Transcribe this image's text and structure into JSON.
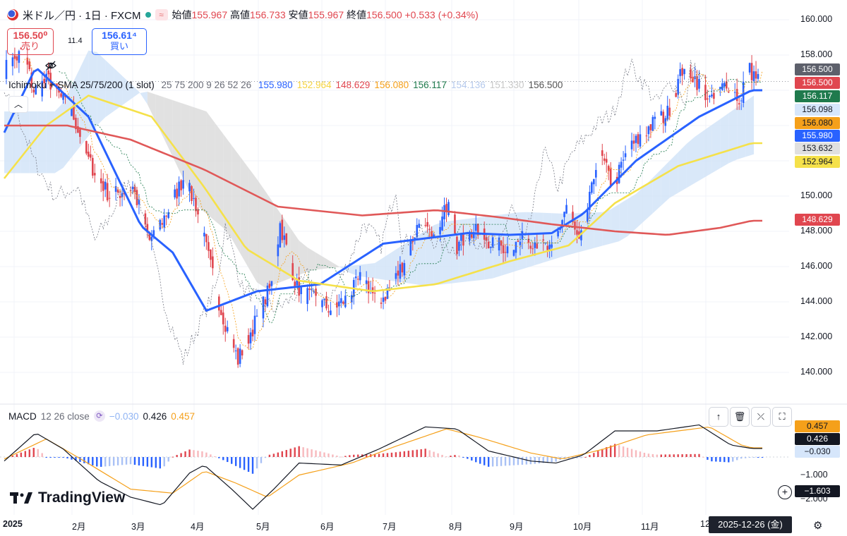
{
  "header": {
    "symbol": "米ドル／円 · 1日 · FXCM",
    "wave_icon": "≈",
    "open_label": "始値",
    "open_value": "155.967",
    "high_label": "高値",
    "high_value": "156.733",
    "low_label": "安値",
    "low_value": "155.967",
    "close_label": "終値",
    "close_value": "156.500",
    "change": "+0.533 (+0.34%)"
  },
  "trade": {
    "sell_price": "156.50⁰",
    "sell_label": "売り",
    "spread": "11.4",
    "buy_price": "156.61⁴",
    "buy_label": "買い"
  },
  "indicator": {
    "name": "Ichimoku + SMA 25/75/200 (1 slot)",
    "params": "25 75 200 9 26 52 26",
    "values": [
      {
        "text": "155.980",
        "color": "#2962ff"
      },
      {
        "text": "152.964",
        "color": "#f5d33f"
      },
      {
        "text": "148.629",
        "color": "#e0464f"
      },
      {
        "text": "156.080",
        "color": "#f5a01a"
      },
      {
        "text": "156.117",
        "color": "#1f7a4d"
      },
      {
        "text": "154.136",
        "color": "#b5c9ec"
      },
      {
        "text": "151.330",
        "color": "#c8c8c8"
      },
      {
        "text": "156.500",
        "color": "#555555"
      }
    ]
  },
  "macd": {
    "label": "MACD",
    "params": "12 26 close",
    "hist_value": "−0.030",
    "macd_value": "0.426",
    "signal_value": "0.457",
    "hist_color": "#90b4f4",
    "macd_color": "#131722",
    "signal_color": "#f5a01a"
  },
  "price_labels": [
    {
      "text": "156.500",
      "bg": "#5d606b",
      "fg": "#ffffff",
      "value": 156.5
    },
    {
      "text": "156.500",
      "bg": "#e0464f",
      "fg": "#ffffff",
      "value": 156.5
    },
    {
      "text": "156.117",
      "bg": "#1f7a4d",
      "fg": "#ffffff",
      "value": 156.117
    },
    {
      "text": "156.098",
      "bg": "#d6e6fb",
      "fg": "#131722",
      "value": 156.098
    },
    {
      "text": "156.080",
      "bg": "#f5a01a",
      "fg": "#131722",
      "value": 156.08
    },
    {
      "text": "155.980",
      "bg": "#2962ff",
      "fg": "#ffffff",
      "value": 155.98
    },
    {
      "text": "153.632",
      "bg": "#e0e0e0",
      "fg": "#131722",
      "value": 153.632
    },
    {
      "text": "152.964",
      "bg": "#f5e14a",
      "fg": "#131722",
      "value": 152.964
    },
    {
      "text": "148.629",
      "bg": "#e0464f",
      "fg": "#ffffff",
      "value": 148.629
    }
  ],
  "macd_labels": [
    {
      "text": "0.457",
      "bg": "#f5a01a",
      "fg": "#131722"
    },
    {
      "text": "0.426",
      "bg": "#131722",
      "fg": "#ffffff"
    },
    {
      "text": "−0.030",
      "bg": "#d6e6fb",
      "fg": "#131722"
    },
    {
      "text": "−1.603",
      "bg": "#131722",
      "fg": "#ffffff"
    }
  ],
  "y_axis": [
    "160.000",
    "158.000",
    "150.000",
    "148.000",
    "146.000",
    "144.000",
    "142.000",
    "140.000"
  ],
  "macd_axis": [
    "−1.000",
    "−2.000"
  ],
  "x_axis": [
    "2025",
    "2月",
    "3月",
    "4月",
    "5月",
    "6月",
    "7月",
    "8月",
    "9月",
    "10月",
    "11月",
    "12"
  ],
  "crosshair_date": "2025-12-26 (金)",
  "logo": "TradingView",
  "chart_data": {
    "type": "candlestick",
    "title": "米ドル／円 · 1日 · FXCM",
    "ylim": [
      139.2,
      160.8
    ],
    "x": [
      "2025-01",
      "2025-02",
      "2025-03",
      "2025-04",
      "2025-05",
      "2025-06",
      "2025-07",
      "2025-08",
      "2025-09",
      "2025-10",
      "2025-11",
      "2025-12"
    ],
    "close_keypoints": [
      {
        "date": "2025-01-02",
        "close": 157.3
      },
      {
        "date": "2025-01-10",
        "close": 158.2
      },
      {
        "date": "2025-01-15",
        "close": 156.0
      },
      {
        "date": "2025-01-22",
        "close": 156.6
      },
      {
        "date": "2025-02-03",
        "close": 154.5
      },
      {
        "date": "2025-02-10",
        "close": 152.0
      },
      {
        "date": "2025-02-20",
        "close": 150.0
      },
      {
        "date": "2025-03-03",
        "close": 150.5
      },
      {
        "date": "2025-03-11",
        "close": 147.5
      },
      {
        "date": "2025-03-19",
        "close": 149.0
      },
      {
        "date": "2025-03-27",
        "close": 151.0
      },
      {
        "date": "2025-04-02",
        "close": 149.5
      },
      {
        "date": "2025-04-08",
        "close": 146.5
      },
      {
        "date": "2025-04-14",
        "close": 143.5
      },
      {
        "date": "2025-04-22",
        "close": 140.7
      },
      {
        "date": "2025-04-30",
        "close": 142.8
      },
      {
        "date": "2025-05-08",
        "close": 145.0
      },
      {
        "date": "2025-05-12",
        "close": 148.4
      },
      {
        "date": "2025-05-20",
        "close": 144.8
      },
      {
        "date": "2025-05-30",
        "close": 144.0
      },
      {
        "date": "2025-06-05",
        "close": 143.6
      },
      {
        "date": "2025-06-13",
        "close": 144.2
      },
      {
        "date": "2025-06-20",
        "close": 145.5
      },
      {
        "date": "2025-06-27",
        "close": 144.0
      },
      {
        "date": "2025-07-03",
        "close": 144.6
      },
      {
        "date": "2025-07-10",
        "close": 146.4
      },
      {
        "date": "2025-07-17",
        "close": 148.5
      },
      {
        "date": "2025-07-25",
        "close": 147.2
      },
      {
        "date": "2025-08-01",
        "close": 150.5
      },
      {
        "date": "2025-08-04",
        "close": 147.2
      },
      {
        "date": "2025-08-12",
        "close": 148.0
      },
      {
        "date": "2025-08-20",
        "close": 147.4
      },
      {
        "date": "2025-08-29",
        "close": 147.0
      },
      {
        "date": "2025-09-05",
        "close": 147.6
      },
      {
        "date": "2025-09-12",
        "close": 147.4
      },
      {
        "date": "2025-09-18",
        "close": 146.8
      },
      {
        "date": "2025-09-25",
        "close": 149.5
      },
      {
        "date": "2025-10-01",
        "close": 147.2
      },
      {
        "date": "2025-10-07",
        "close": 150.3
      },
      {
        "date": "2025-10-10",
        "close": 152.7
      },
      {
        "date": "2025-10-17",
        "close": 150.5
      },
      {
        "date": "2025-10-24",
        "close": 152.5
      },
      {
        "date": "2025-11-04",
        "close": 154.0
      },
      {
        "date": "2025-11-12",
        "close": 154.7
      },
      {
        "date": "2025-11-20",
        "close": 157.5
      },
      {
        "date": "2025-11-26",
        "close": 156.5
      },
      {
        "date": "2025-12-03",
        "close": 155.3
      },
      {
        "date": "2025-12-10",
        "close": 156.5
      },
      {
        "date": "2025-12-17",
        "close": 155.3
      },
      {
        "date": "2025-12-19",
        "close": 157.4
      },
      {
        "date": "2025-12-26",
        "close": 156.5
      }
    ],
    "ohlc_last": {
      "open": 155.967,
      "high": 156.733,
      "low": 155.967,
      "close": 156.5
    },
    "series": [
      {
        "name": "SMA 25",
        "color": "#2962ff",
        "keypoints": [
          [
            0,
            153.6
          ],
          [
            15,
            157.3
          ],
          [
            40,
            154.5
          ],
          [
            65,
            148.3
          ],
          [
            80,
            146.8
          ],
          [
            96,
            143.5
          ],
          [
            120,
            144.6
          ],
          [
            150,
            145.0
          ],
          [
            180,
            147.3
          ],
          [
            220,
            147.9
          ],
          [
            240,
            147.8
          ],
          [
            260,
            147.9
          ],
          [
            275,
            149.0
          ],
          [
            300,
            152.0
          ],
          [
            330,
            154.5
          ],
          [
            355,
            156.0
          ]
        ]
      },
      {
        "name": "SMA 75",
        "color": "#f5e14a",
        "keypoints": [
          [
            0,
            151.0
          ],
          [
            20,
            154.0
          ],
          [
            40,
            155.7
          ],
          [
            70,
            154.5
          ],
          [
            95,
            150.5
          ],
          [
            115,
            147.0
          ],
          [
            140,
            145.2
          ],
          [
            175,
            144.6
          ],
          [
            205,
            145.0
          ],
          [
            240,
            146.3
          ],
          [
            268,
            147.2
          ],
          [
            290,
            149.6
          ],
          [
            320,
            151.7
          ],
          [
            355,
            153.0
          ]
        ]
      },
      {
        "name": "SMA 200",
        "color": "#e05858",
        "keypoints": [
          [
            0,
            154.0
          ],
          [
            30,
            154.0
          ],
          [
            60,
            153.2
          ],
          [
            95,
            151.5
          ],
          [
            130,
            149.4
          ],
          [
            170,
            148.9
          ],
          [
            205,
            149.2
          ],
          [
            235,
            148.8
          ],
          [
            260,
            148.4
          ],
          [
            290,
            148.0
          ],
          [
            315,
            147.8
          ],
          [
            340,
            148.2
          ],
          [
            355,
            148.6
          ]
        ]
      }
    ],
    "macd_series": [
      {
        "name": "MACD",
        "keypoints": [
          [
            0,
            -0.2
          ],
          [
            15,
            1.2
          ],
          [
            28,
            0.4
          ],
          [
            45,
            -1.2
          ],
          [
            60,
            -2.0
          ],
          [
            75,
            -2.4
          ],
          [
            88,
            -0.8
          ],
          [
            95,
            -0.4
          ],
          [
            108,
            -1.6
          ],
          [
            118,
            -2.6
          ],
          [
            128,
            -1.6
          ],
          [
            140,
            -0.3
          ],
          [
            160,
            -0.4
          ],
          [
            178,
            0.4
          ],
          [
            200,
            1.5
          ],
          [
            215,
            1.4
          ],
          [
            230,
            0.3
          ],
          [
            250,
            -0.2
          ],
          [
            262,
            -0.3
          ],
          [
            275,
            0.1
          ],
          [
            290,
            1.3
          ],
          [
            310,
            1.3
          ],
          [
            330,
            1.6
          ],
          [
            345,
            0.6
          ],
          [
            355,
            0.426
          ]
        ]
      },
      {
        "name": "Signal",
        "keypoints": [
          [
            0,
            -0.1
          ],
          [
            20,
            0.9
          ],
          [
            38,
            -0.2
          ],
          [
            60,
            -1.6
          ],
          [
            80,
            -1.8
          ],
          [
            95,
            -0.7
          ],
          [
            110,
            -1.3
          ],
          [
            125,
            -2.0
          ],
          [
            140,
            -0.9
          ],
          [
            165,
            -0.3
          ],
          [
            185,
            0.5
          ],
          [
            210,
            1.4
          ],
          [
            225,
            1.0
          ],
          [
            250,
            0.2
          ],
          [
            265,
            -0.1
          ],
          [
            285,
            0.4
          ],
          [
            305,
            1.1
          ],
          [
            335,
            1.5
          ],
          [
            350,
            0.6
          ],
          [
            355,
            0.457
          ]
        ]
      }
    ]
  }
}
